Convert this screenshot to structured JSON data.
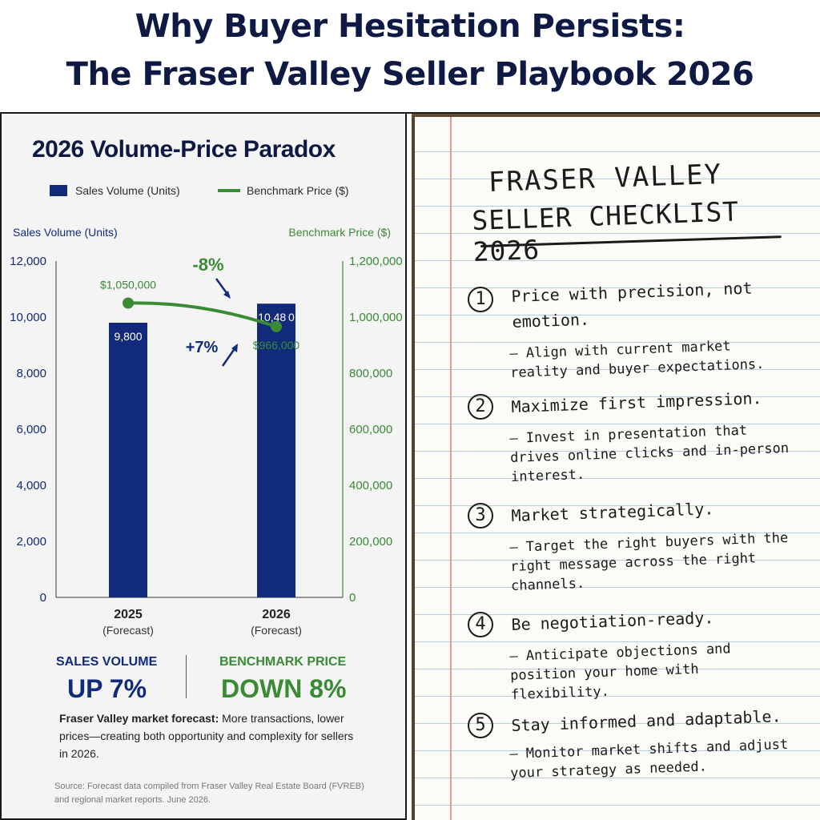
{
  "header": {
    "title_line1": "Why Buyer Hesitation Persists:",
    "title_line2": "The Fraser Valley Seller Playbook 2026"
  },
  "colors": {
    "volume": "#112b7a",
    "price": "#3a8a36",
    "title": "#0f1a44"
  },
  "chart_data": {
    "type": "bar",
    "title": "2026 Volume-Price Paradox",
    "categories": [
      "2025",
      "2026"
    ],
    "category_sublabels": [
      "(Forecast)",
      "(Forecast)"
    ],
    "series": [
      {
        "name": "Sales Volume (Units)",
        "type": "bar",
        "axis": "left",
        "values": [
          9800,
          10480
        ],
        "value_labels": [
          "9,800",
          "10,48 0"
        ]
      },
      {
        "name": "Benchmark Price ($)",
        "type": "line",
        "axis": "right",
        "values": [
          1050000,
          966000
        ],
        "value_labels": [
          "$1,050,000",
          "$966,000"
        ]
      }
    ],
    "ylabel_left": "Sales Volume (Units)",
    "ylabel_right": "Benchmark Price ($)",
    "ylim_left": [
      0,
      12000
    ],
    "ylim_right": [
      0,
      1200000
    ],
    "yticks_left": [
      "0",
      "2,000",
      "4,000",
      "6,000",
      "8,000",
      "10,000",
      "12,000"
    ],
    "yticks_right": [
      "0",
      "200,000",
      "400,000",
      "600,000",
      "800,000",
      "1,000,000",
      "1,200,000"
    ],
    "annotations": {
      "volume_change": "+7%",
      "price_change": "-8%"
    },
    "legend": "top"
  },
  "summary": {
    "volume_label": "SALES VOLUME",
    "volume_value": "UP 7%",
    "price_label": "BENCHMARK PRICE",
    "price_value": "DOWN 8%"
  },
  "forecast": {
    "lead": "Fraser Valley market forecast:",
    "body": " More transactions, lower prices—creating both opportunity and complexity for sellers in 2026."
  },
  "source": "Source:  Forecast data compiled from Fraser Valley Real Estate Board (FVREB) and regional market reports. June 2026.",
  "checklist": {
    "title_line1": "FRASER VALLEY",
    "title_line2": "SELLER CHECKLIST 2026",
    "items": [
      {
        "num": "1",
        "head": "Price with precision, not emotion.",
        "sub": "– Align with current market reality and buyer expectations."
      },
      {
        "num": "2",
        "head": "Maximize first impression.",
        "sub": "– Invest in presentation that drives online clicks and in-person interest."
      },
      {
        "num": "3",
        "head": "Market strategically.",
        "sub": "– Target the right buyers with the right message across the right channels."
      },
      {
        "num": "4",
        "head": "Be negotiation-ready.",
        "sub": "– Anticipate objections and position your home with flexibility."
      },
      {
        "num": "5",
        "head": "Stay informed and adaptable.",
        "sub": "– Monitor market shifts and adjust your strategy as needed."
      }
    ]
  }
}
